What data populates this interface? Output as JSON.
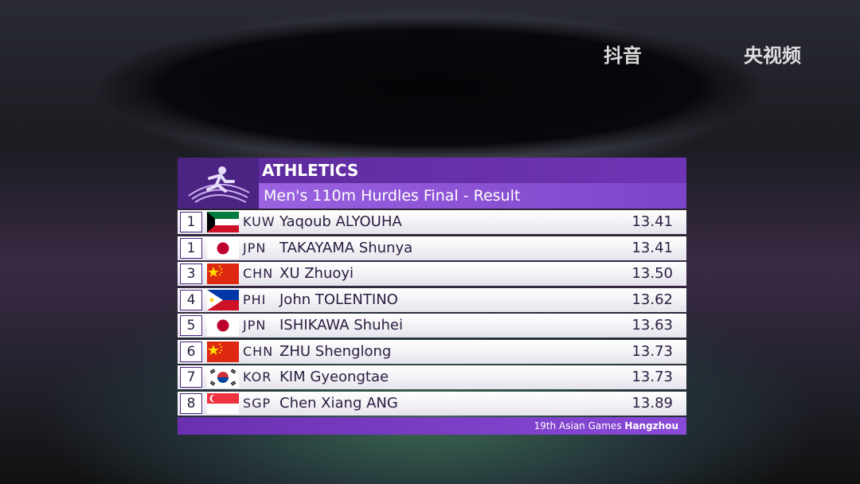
{
  "watermark": {
    "app": "抖音",
    "channel": "央视频"
  },
  "header": {
    "sport": "ATHLETICS",
    "event": "Men's 110m Hurdles Final - Result"
  },
  "results": [
    {
      "rank": 1,
      "country": "KUW",
      "name": "Yaqoub ALYOUHA",
      "time": "13.41"
    },
    {
      "rank": 1,
      "country": "JPN",
      "name": "TAKAYAMA Shunya",
      "time": "13.41"
    },
    {
      "rank": 3,
      "country": "CHN",
      "name": "XU Zhuoyi",
      "time": "13.50"
    },
    {
      "rank": 4,
      "country": "PHI",
      "name": "John TOLENTINO",
      "time": "13.62"
    },
    {
      "rank": 5,
      "country": "JPN",
      "name": "ISHIKAWA Shuhei",
      "time": "13.63"
    },
    {
      "rank": 6,
      "country": "CHN",
      "name": "ZHU Shenglong",
      "time": "13.73"
    },
    {
      "rank": 7,
      "country": "KOR",
      "name": "KIM Gyeongtae",
      "time": "13.73"
    },
    {
      "rank": 8,
      "country": "SGP",
      "name": "Chen Xiang ANG",
      "time": "13.89"
    }
  ],
  "footer": {
    "games": "19th Asian Games",
    "city": "Hangzhou"
  }
}
